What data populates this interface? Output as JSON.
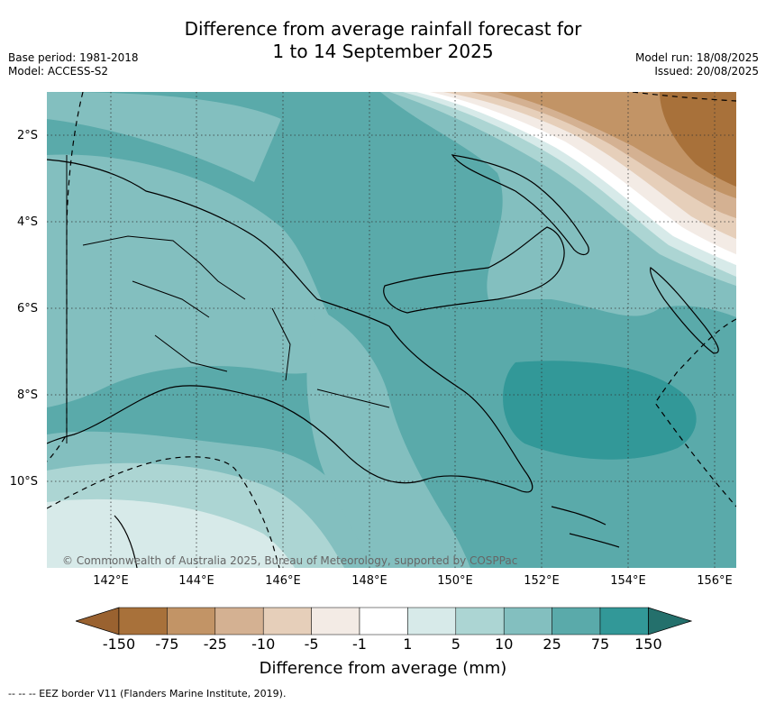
{
  "title": {
    "line1": "Difference from average rainfall forecast for",
    "line2": "1 to 14 September 2025"
  },
  "meta": {
    "base_period": "Base period: 1981-2018",
    "model": "Model: ACCESS-S2",
    "model_run": "Model run: 18/08/2025",
    "issued": "Issued: 20/08/2025"
  },
  "map": {
    "lat_labels": [
      "2°S",
      "4°S",
      "6°S",
      "8°S",
      "10°S"
    ],
    "lon_labels": [
      "142°E",
      "144°E",
      "146°E",
      "148°E",
      "150°E",
      "152°E",
      "154°E",
      "156°E"
    ],
    "extent": {
      "lon_min": 140.2,
      "lon_max": 156.4,
      "lat_min": -12.0,
      "lat_max": -1.0
    },
    "copyright": "© Commonwealth of Australia 2025, Bureau of Meteorology, supported by COSPPac",
    "colors": {
      "land_outline": "#000000",
      "grid": "#333333"
    }
  },
  "colorbar": {
    "title": "Difference from average (mm)",
    "ticks": [
      "-150",
      "-75",
      "-25",
      "-10",
      "-5",
      "-1",
      "1",
      "5",
      "10",
      "25",
      "75",
      "150"
    ],
    "colors": [
      "#a8713a",
      "#c29466",
      "#d4b192",
      "#e6cfba",
      "#f3ebe5",
      "#ffffff",
      "#d7eae9",
      "#acd5d3",
      "#83bfbf",
      "#5aaaaa",
      "#329898",
      "#2a7873"
    ],
    "extend_low_color": "#9a6230",
    "extend_high_color": "#24706c"
  },
  "footnote": {
    "eez": "--  --  -- EEZ border V11 (Flanders Marine Institute, 2019)."
  }
}
